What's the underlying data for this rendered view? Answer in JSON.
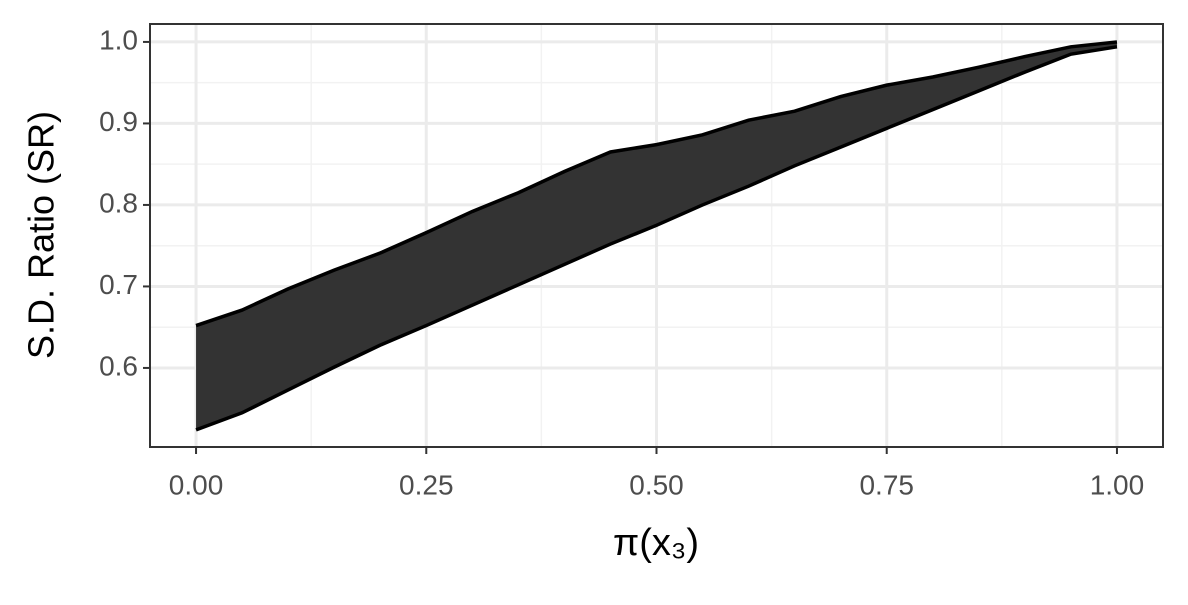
{
  "chart_data": {
    "type": "ribbon",
    "xlabel": "π(x₃)",
    "ylabel": "S.D. Ratio (SR)",
    "x": [
      0,
      0.05,
      0.1,
      0.15,
      0.2,
      0.25,
      0.3,
      0.35,
      0.4,
      0.45,
      0.5,
      0.55,
      0.6,
      0.65,
      0.7,
      0.75,
      0.8,
      0.85,
      0.9,
      0.95,
      1
    ],
    "ymin": [
      0.524,
      0.545,
      0.573,
      0.601,
      0.628,
      0.652,
      0.677,
      0.702,
      0.727,
      0.752,
      0.775,
      0.8,
      0.823,
      0.848,
      0.871,
      0.894,
      0.917,
      0.94,
      0.963,
      0.985,
      0.994
    ],
    "ymax": [
      0.652,
      0.671,
      0.697,
      0.72,
      0.741,
      0.766,
      0.792,
      0.815,
      0.841,
      0.865,
      0.874,
      0.886,
      0.904,
      0.915,
      0.933,
      0.947,
      0.957,
      0.969,
      0.982,
      0.994,
      1
    ],
    "color": "#333333",
    "xlim": [
      -0.05,
      1.05
    ],
    "ylim": [
      0.503,
      1.022
    ],
    "xticks": [
      {
        "value": 0,
        "label": "0.00"
      },
      {
        "value": 0.25,
        "label": "0.25"
      },
      {
        "value": 0.5,
        "label": "0.50"
      },
      {
        "value": 0.75,
        "label": "0.75"
      },
      {
        "value": 1,
        "label": "1.00"
      }
    ],
    "yticks": [
      0.6,
      0.7,
      0.8,
      0.9,
      {
        "value": 1,
        "label": "1.0"
      }
    ],
    "grid": true
  }
}
